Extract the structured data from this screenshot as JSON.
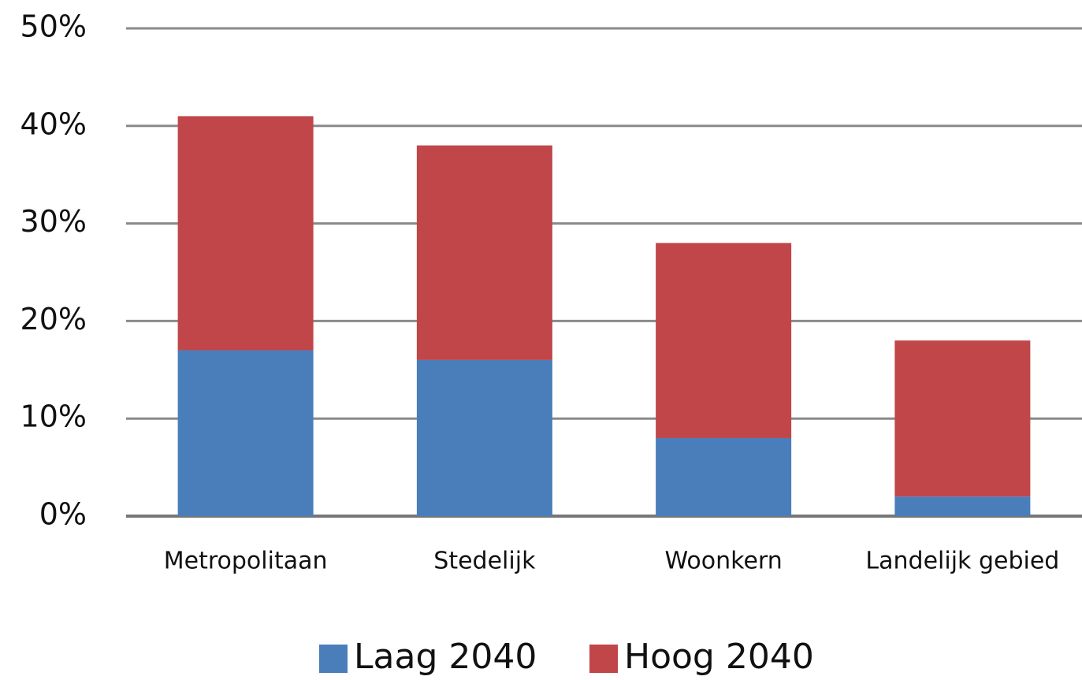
{
  "chart_data": {
    "type": "stacked_bar",
    "categories": [
      "Metropolitaan",
      "Stedelijk",
      "Woonkern",
      "Landelijk gebied"
    ],
    "series": [
      {
        "name": "Laag 2040",
        "color": "#4a7ebb",
        "values": [
          17,
          16,
          8,
          2
        ]
      },
      {
        "name": "Hoog 2040",
        "color": "#c0464a",
        "values": [
          24,
          22,
          20,
          16
        ]
      }
    ],
    "ylim": [
      0,
      50
    ],
    "yticks": [
      {
        "value": 0,
        "label": "0%"
      },
      {
        "value": 10,
        "label": "10%"
      },
      {
        "value": 20,
        "label": "20%"
      },
      {
        "value": 30,
        "label": "30%"
      },
      {
        "value": 40,
        "label": "40%"
      },
      {
        "value": 50,
        "label": "50%"
      }
    ],
    "grid": true,
    "legend": "bottom"
  }
}
